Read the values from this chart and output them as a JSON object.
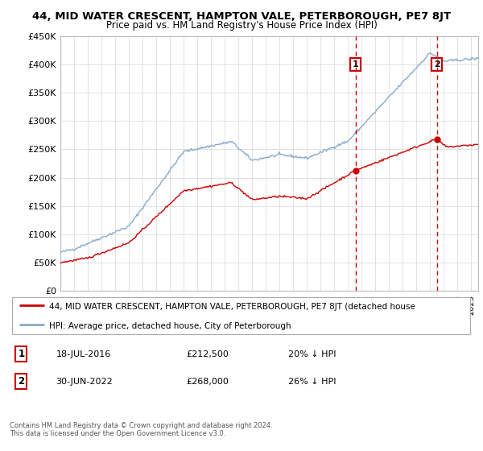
{
  "title": "44, MID WATER CRESCENT, HAMPTON VALE, PETERBOROUGH, PE7 8JT",
  "subtitle": "Price paid vs. HM Land Registry's House Price Index (HPI)",
  "ylim": [
    0,
    450000
  ],
  "yticks": [
    0,
    50000,
    100000,
    150000,
    200000,
    250000,
    300000,
    350000,
    400000,
    450000
  ],
  "xlim_start": 1995.0,
  "xlim_end": 2025.5,
  "transaction1_date": 2016.54,
  "transaction1_price": 212500,
  "transaction2_date": 2022.49,
  "transaction2_price": 268000,
  "legend_line1": "44, MID WATER CRESCENT, HAMPTON VALE, PETERBOROUGH, PE7 8JT (detached house",
  "legend_line2": "HPI: Average price, detached house, City of Peterborough",
  "annotation1_date": "18-JUL-2016",
  "annotation1_price": "£212,500",
  "annotation1_pct": "20% ↓ HPI",
  "annotation2_date": "30-JUN-2022",
  "annotation2_price": "£268,000",
  "annotation2_pct": "26% ↓ HPI",
  "footer": "Contains HM Land Registry data © Crown copyright and database right 2024.\nThis data is licensed under the Open Government Licence v3.0.",
  "property_color": "#cc0000",
  "hpi_color": "#88aacc",
  "grid_color": "#dddddd",
  "background_color": "#ffffff"
}
